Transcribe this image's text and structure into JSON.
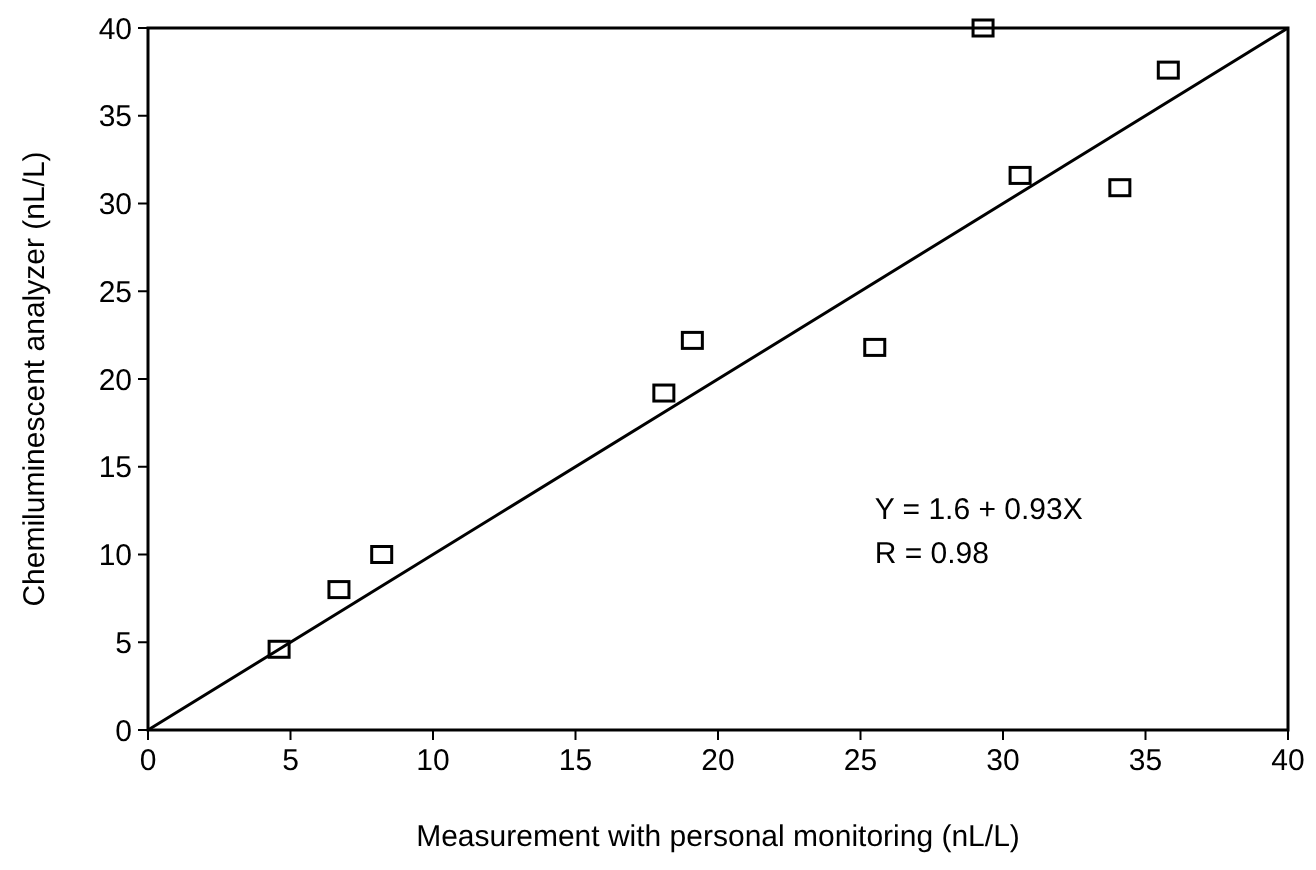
{
  "chart_data": {
    "type": "scatter",
    "xlabel": "Measurement with personal monitoring (nL/L)",
    "ylabel": "Chemiluminescent analyzer (nL/L)",
    "xlim": [
      0,
      40
    ],
    "ylim": [
      0,
      40
    ],
    "xticks": [
      0,
      5,
      10,
      15,
      20,
      25,
      30,
      35,
      40
    ],
    "yticks": [
      0,
      5,
      10,
      15,
      20,
      25,
      30,
      35,
      40
    ],
    "grid": false,
    "series": [
      {
        "marker": "square",
        "color": "#000000",
        "x": [
          4.6,
          6.7,
          8.2,
          18.1,
          19.1,
          25.5,
          29.3,
          30.6,
          34.1,
          35.8
        ],
        "values": [
          4.6,
          8.0,
          10.0,
          19.2,
          22.2,
          21.8,
          40,
          31.6,
          30.9,
          37.6
        ]
      },
      {
        "type": "line",
        "color": "#000000",
        "line_style": "solid",
        "x": [
          0,
          40
        ],
        "values": [
          0,
          40
        ]
      }
    ],
    "annotations": [
      "Y = 1.6 + 0.93X",
      "R = 0.98"
    ]
  }
}
